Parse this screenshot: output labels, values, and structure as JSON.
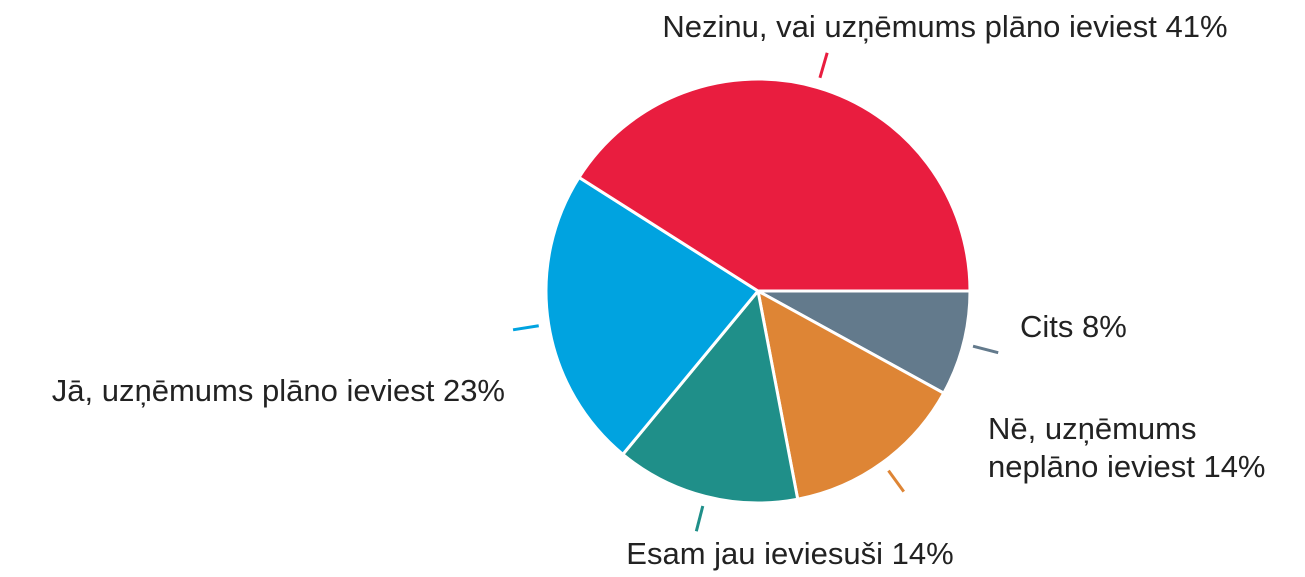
{
  "chart_data": {
    "type": "pie",
    "categories": [
      "Cits",
      "Nē, uzņēmums neplāno ieviest",
      "Esam jau ieviesuši",
      "Jā, uzņēmums plāno ieviest",
      "Nezinu, vai uzņēmums plāno ieviest"
    ],
    "values": [
      8,
      14,
      14,
      23,
      41
    ],
    "value_labels": [
      "8%",
      "14%",
      "14%",
      "23%",
      "41%"
    ],
    "colors": [
      "#637a8c",
      "#de8535",
      "#1f8f89",
      "#00a3e0",
      "#e91d3f"
    ]
  }
}
